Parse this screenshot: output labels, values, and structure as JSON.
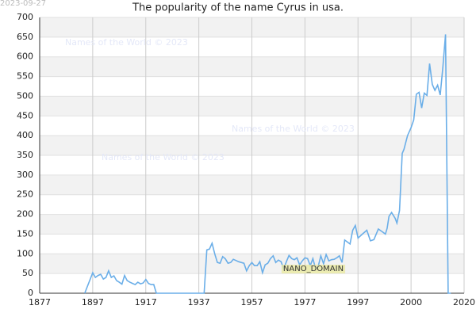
{
  "chart_data": {
    "type": "line",
    "title": "The popularity of the name Cyrus in usa.",
    "date_stamp": "2023-09-27",
    "watermarks": [
      "Names of the World © 2023",
      "Names of the World © 2023",
      "Names of the World © 2023"
    ],
    "domain_label": "NANO_DOMAIN",
    "x": [
      1894,
      1897,
      1898,
      1899,
      1900,
      1901,
      1902,
      1903,
      1904,
      1905,
      1906,
      1907,
      1908,
      1909,
      1910,
      1911,
      1912,
      1913,
      1914,
      1915,
      1916,
      1917,
      1918,
      1919,
      1920,
      1921,
      1930,
      1939,
      1940,
      1941,
      1942,
      1943,
      1944,
      1945,
      1946,
      1947,
      1948,
      1949,
      1950,
      1951,
      1952,
      1953,
      1954,
      1955,
      1956,
      1957,
      1958,
      1959,
      1960,
      1961,
      1962,
      1963,
      1964,
      1965,
      1966,
      1967,
      1968,
      1969,
      1970,
      1971,
      1972,
      1973,
      1974,
      1975,
      1976,
      1977,
      1978,
      1979,
      1980,
      1981,
      1982,
      1983,
      1984,
      1985,
      1986,
      1987,
      1988,
      1989,
      1990,
      1991,
      1992,
      1993,
      1994,
      1995,
      1996,
      1997,
      1997.25,
      1997.5,
      1997.7,
      1997.9,
      1998.15,
      1998.4,
      1998.55,
      1998.65,
      1998.75,
      1998.9,
      1999.1,
      1999.2,
      1999.35,
      1999.5,
      1999.6,
      1999.8,
      2000,
      2001,
      2002,
      2003,
      2004,
      2005,
      2006,
      2007,
      2008,
      2009,
      2010,
      2011,
      2012,
      2013,
      2014,
      2015
    ],
    "series": [
      {
        "name": "Cyrus",
        "color": "#6aaee8",
        "values": [
          0,
          52,
          40,
          45,
          48,
          36,
          40,
          57,
          40,
          44,
          32,
          28,
          23,
          45,
          32,
          28,
          25,
          22,
          28,
          24,
          26,
          35,
          25,
          22,
          22,
          0,
          0,
          0,
          110,
          112,
          127,
          100,
          78,
          76,
          93,
          87,
          76,
          78,
          86,
          83,
          80,
          78,
          76,
          57,
          70,
          78,
          70,
          70,
          80,
          52,
          72,
          76,
          88,
          95,
          78,
          84,
          80,
          62,
          80,
          96,
          88,
          85,
          90,
          72,
          82,
          90,
          88,
          70,
          88,
          62,
          68,
          95,
          75,
          98,
          82,
          85,
          86,
          90,
          95,
          78,
          135,
          130,
          125,
          160,
          172,
          140,
          150,
          160,
          133,
          136,
          163,
          155,
          150,
          165,
          195,
          205,
          190,
          178,
          210,
          355,
          365,
          400,
          420,
          440,
          505,
          510,
          470,
          508,
          502,
          583,
          530,
          515,
          528,
          503,
          575,
          657,
          0,
          0
        ]
      }
    ],
    "xticks": [
      1877,
      1897,
      1917,
      1937,
      1957,
      1977,
      1997,
      2000,
      2020
    ],
    "ylim": [
      0,
      700
    ],
    "yticks": [
      0,
      50,
      100,
      150,
      200,
      250,
      300,
      350,
      400,
      450,
      500,
      550,
      600,
      650,
      700
    ],
    "grid": true
  }
}
